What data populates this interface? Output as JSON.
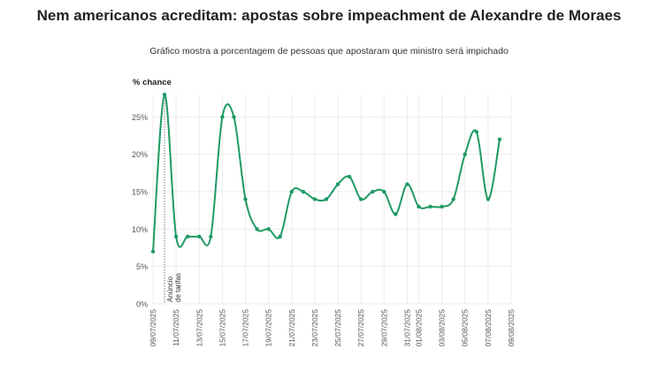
{
  "chart_data": {
    "type": "line",
    "title": "Nem americanos acreditam: apostas sobre impeachment de Alexandre de Moraes",
    "subtitle": "Gráfico mostra a porcentagem de pessoas que apostaram que ministro será impichado",
    "ylabel": "% chance",
    "xlabel": "",
    "ylim": [
      0,
      28
    ],
    "yticks": [
      "0%",
      "5%",
      "10%",
      "15%",
      "20%",
      "25%"
    ],
    "xticks": [
      "09/07/2025",
      "11/07/2025",
      "13/07/2025",
      "15/07/2025",
      "17/07/2025",
      "19/07/2025",
      "21/07/2025",
      "23/07/2025",
      "25/07/2025",
      "27/07/2025",
      "29/07/2025",
      "31/07/2025",
      "01/08/2025",
      "03/08/2025",
      "05/08/2025",
      "07/08/2025",
      "09/08/2025"
    ],
    "grid": true,
    "color": "#1f9a64",
    "x": [
      "09/07/2025",
      "10/07/2025",
      "11/07/2025",
      "12/07/2025",
      "13/07/2025",
      "14/07/2025",
      "15/07/2025",
      "16/07/2025",
      "17/07/2025",
      "18/07/2025",
      "19/07/2025",
      "20/07/2025",
      "21/07/2025",
      "22/07/2025",
      "23/07/2025",
      "24/07/2025",
      "25/07/2025",
      "26/07/2025",
      "27/07/2025",
      "28/07/2025",
      "29/07/2025",
      "30/07/2025",
      "31/07/2025",
      "01/08/2025",
      "02/08/2025",
      "03/08/2025",
      "04/08/2025",
      "05/08/2025",
      "06/08/2025",
      "07/08/2025",
      "08/08/2025"
    ],
    "values": [
      7,
      28,
      9,
      9,
      9,
      9,
      25,
      25,
      14,
      10,
      10,
      9,
      15,
      15,
      14,
      14,
      16,
      17,
      14,
      15,
      15,
      12,
      16,
      13,
      13,
      13,
      14,
      20,
      23,
      14,
      22
    ],
    "annotation": {
      "date": "10/07/2025",
      "text": [
        "Anúncio",
        "de tarifas"
      ]
    }
  }
}
